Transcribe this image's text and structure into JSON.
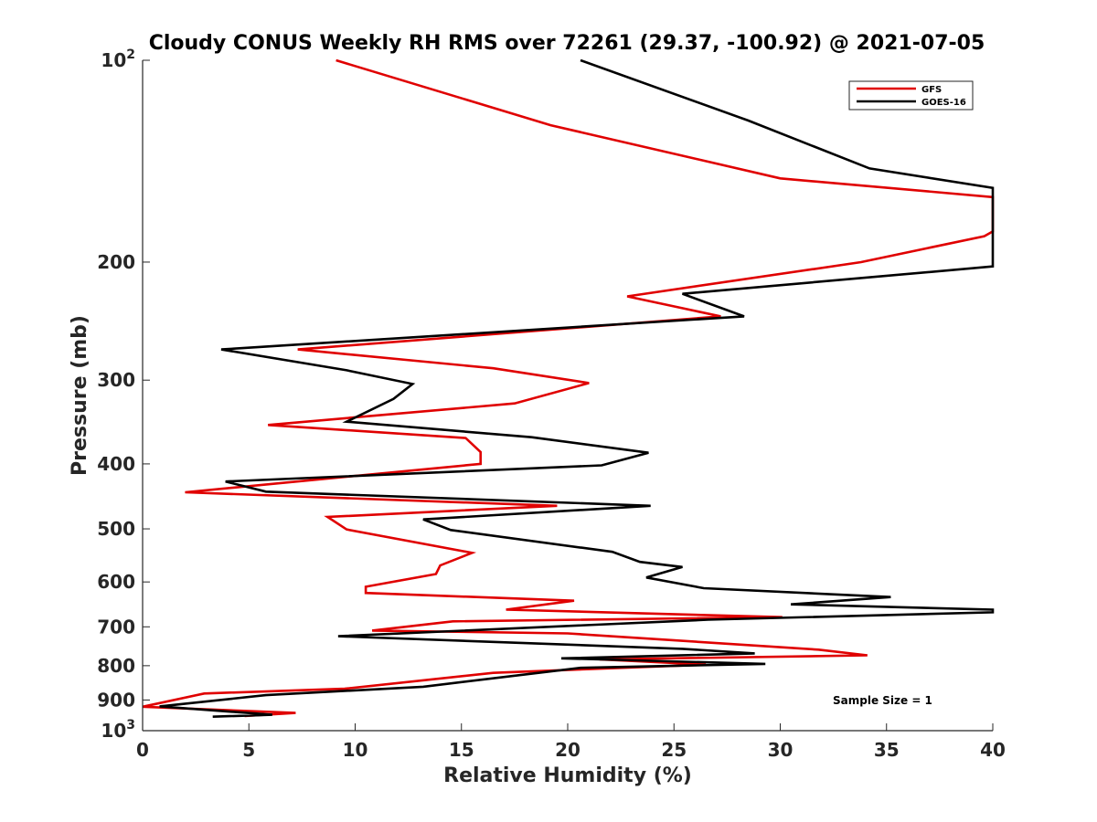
{
  "chart_data": {
    "type": "line",
    "title": "Cloudy CONUS Weekly RH RMS over 72261 (29.37, -100.92) @ 2021-07-05",
    "xlabel": "Relative Humidity (%)",
    "ylabel": "Pressure (mb)",
    "xlim": [
      0,
      40
    ],
    "ylim": [
      100,
      1000
    ],
    "y_scale": "log",
    "y_reversed": true,
    "grid": false,
    "x_ticks": [
      "0",
      "5",
      "10",
      "15",
      "20",
      "25",
      "30",
      "35",
      "40"
    ],
    "y_ticks": [
      {
        "value": 100,
        "base": "10",
        "exp": "2"
      },
      {
        "value": 200,
        "label": "200"
      },
      {
        "value": 300,
        "label": "300"
      },
      {
        "value": 400,
        "label": "400"
      },
      {
        "value": 500,
        "label": "500"
      },
      {
        "value": 600,
        "label": "600"
      },
      {
        "value": 700,
        "label": "700"
      },
      {
        "value": 800,
        "label": "800"
      },
      {
        "value": 900,
        "label": "900"
      },
      {
        "value": 1000,
        "base": "10",
        "exp": "3"
      }
    ],
    "legend_position": "top-right",
    "annotation": "Sample Size = 1",
    "series": [
      {
        "name": "GFS",
        "color": "#e00000",
        "points": [
          [
            9.1,
            100
          ],
          [
            19.2,
            125
          ],
          [
            30.0,
            150
          ],
          [
            40.0,
            160
          ],
          [
            40.0,
            180
          ],
          [
            39.6,
            183
          ],
          [
            33.8,
            200
          ],
          [
            22.8,
            225
          ],
          [
            27.2,
            241
          ],
          [
            7.3,
            270
          ],
          [
            16.5,
            288
          ],
          [
            21.0,
            303
          ],
          [
            17.5,
            325
          ],
          [
            5.9,
            350
          ],
          [
            15.2,
            366
          ],
          [
            15.9,
            384
          ],
          [
            15.9,
            400
          ],
          [
            2.0,
            441
          ],
          [
            19.5,
            462
          ],
          [
            8.7,
            480
          ],
          [
            9.6,
            501
          ],
          [
            15.5,
            543
          ],
          [
            14.0,
            567
          ],
          [
            13.8,
            584
          ],
          [
            10.5,
            610
          ],
          [
            10.5,
            623
          ],
          [
            20.3,
            640
          ],
          [
            17.1,
            660
          ],
          [
            30.1,
            677
          ],
          [
            14.6,
            687
          ],
          [
            10.8,
            709
          ],
          [
            20.0,
            716
          ],
          [
            31.8,
            757
          ],
          [
            34.1,
            772
          ],
          [
            21.5,
            783
          ],
          [
            26.5,
            797
          ],
          [
            16.5,
            820
          ],
          [
            9.5,
            866
          ],
          [
            2.9,
            880
          ],
          [
            0.0,
            921
          ],
          [
            7.2,
            941
          ],
          [
            4.8,
            951
          ]
        ]
      },
      {
        "name": "GOES-16",
        "color": "#000000",
        "points": [
          [
            20.6,
            100
          ],
          [
            28.5,
            123
          ],
          [
            34.2,
            145
          ],
          [
            40.0,
            155
          ],
          [
            40.0,
            203
          ],
          [
            25.4,
            223
          ],
          [
            28.3,
            241
          ],
          [
            3.7,
            270
          ],
          [
            9.6,
            290
          ],
          [
            12.7,
            304
          ],
          [
            11.8,
            320
          ],
          [
            9.6,
            346
          ],
          [
            18.3,
            365
          ],
          [
            23.8,
            385
          ],
          [
            21.6,
            402
          ],
          [
            3.9,
            425
          ],
          [
            5.8,
            440
          ],
          [
            23.9,
            462
          ],
          [
            13.2,
            484
          ],
          [
            14.5,
            502
          ],
          [
            22.1,
            541
          ],
          [
            23.4,
            560
          ],
          [
            25.4,
            570
          ],
          [
            23.7,
            591
          ],
          [
            26.4,
            613
          ],
          [
            35.2,
            632
          ],
          [
            30.5,
            648
          ],
          [
            40.0,
            660
          ],
          [
            40.0,
            666
          ],
          [
            26.6,
            683
          ],
          [
            9.2,
            723
          ],
          [
            25.4,
            755
          ],
          [
            28.8,
            767
          ],
          [
            19.7,
            780
          ],
          [
            29.3,
            795
          ],
          [
            20.6,
            806
          ],
          [
            13.2,
            860
          ],
          [
            5.8,
            885
          ],
          [
            0.8,
            920
          ],
          [
            6.1,
            947
          ],
          [
            3.3,
            953
          ]
        ]
      }
    ]
  }
}
